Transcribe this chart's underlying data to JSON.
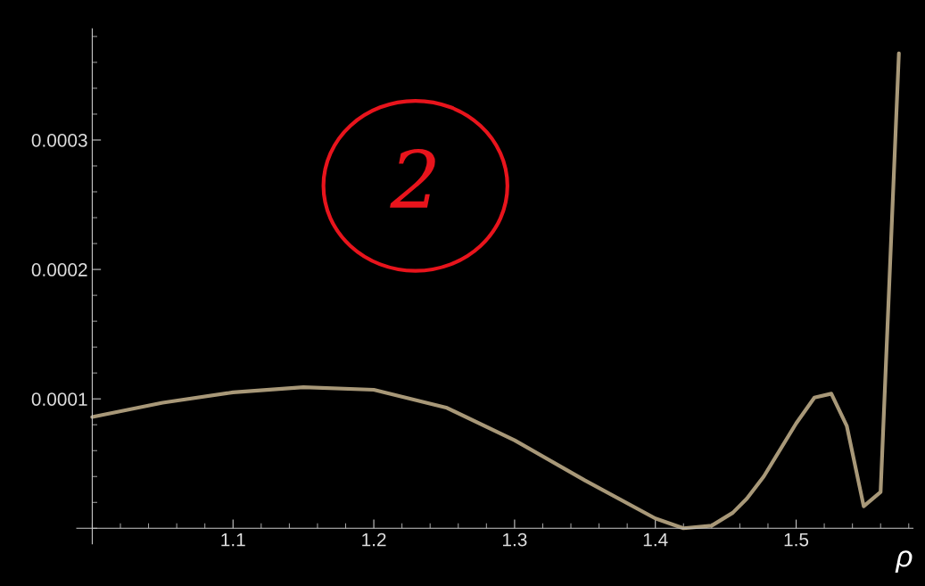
{
  "chart_data": {
    "type": "line",
    "xlabel": "ρ",
    "x": [
      1.0,
      1.05,
      1.1,
      1.15,
      1.2,
      1.252,
      1.3,
      1.35,
      1.4,
      1.42,
      1.44,
      1.455,
      1.465,
      1.477,
      1.5,
      1.513,
      1.525,
      1.536,
      1.548,
      1.56,
      1.573
    ],
    "series": [
      {
        "color": "#a89878",
        "values": [
          8.6e-05,
          9.7e-05,
          0.000105,
          0.000109,
          0.000107,
          9.3e-05,
          6.8e-05,
          3.7e-05,
          7.6e-06,
          0.0,
          2e-06,
          1.2e-05,
          2.3e-05,
          4e-05,
          8.1e-05,
          0.000101,
          0.000104,
          7.9e-05,
          1.7e-05,
          2.8e-05,
          0.000367
        ]
      }
    ],
    "xlim": [
      0.989,
      1.583
    ],
    "ylim": [
      -1.2e-05,
      0.000386
    ],
    "xticks": [
      1.1,
      1.2,
      1.3,
      1.4,
      1.5
    ],
    "yticks": [
      {
        "value": 0.0001,
        "label": "0.0001"
      },
      {
        "value": 0.0002,
        "label": "0.0002"
      },
      {
        "value": 0.0003,
        "label": "0.0003"
      }
    ],
    "annotations": [
      "2"
    ],
    "grid": false,
    "legend": false
  }
}
